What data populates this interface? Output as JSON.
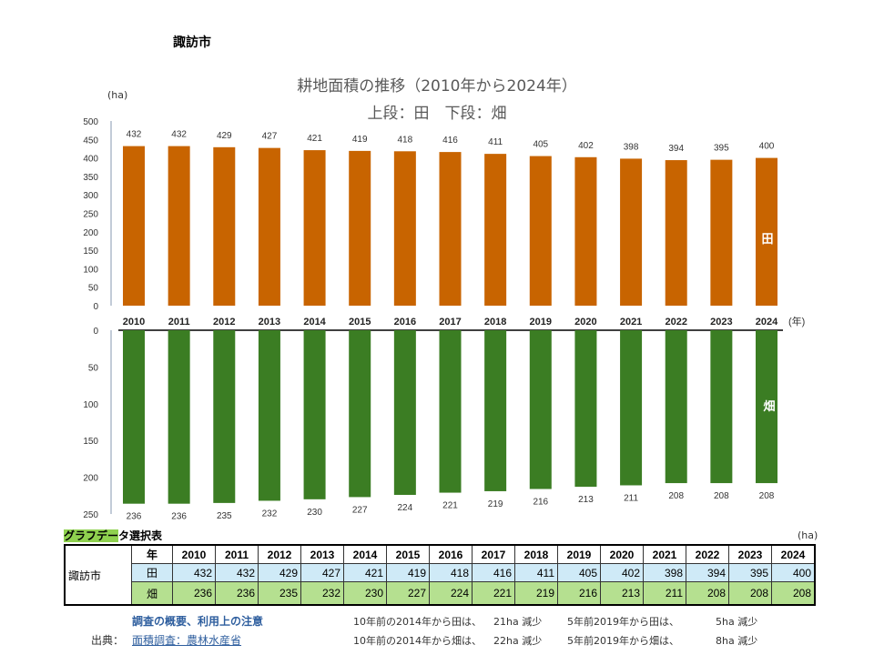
{
  "city_title": "諏訪市",
  "chart_data": {
    "type": "bar",
    "title": "耕地面積の推移（2010年から2024年）",
    "subtitle": "上段：田　下段：畑",
    "ylabel": "(ha)",
    "xlabel": "(年)",
    "categories": [
      "2010",
      "2011",
      "2012",
      "2013",
      "2014",
      "2015",
      "2016",
      "2017",
      "2018",
      "2019",
      "2020",
      "2021",
      "2022",
      "2023",
      "2024"
    ],
    "series": [
      {
        "name": "田",
        "values": [
          432,
          432,
          429,
          427,
          421,
          419,
          418,
          416,
          411,
          405,
          402,
          398,
          394,
          395,
          400
        ],
        "color": "#c86400",
        "ylim": [
          0,
          500
        ],
        "yticks": [
          0,
          50,
          100,
          150,
          200,
          250,
          300,
          350,
          400,
          450,
          500
        ]
      },
      {
        "name": "畑",
        "values": [
          236,
          236,
          235,
          232,
          230,
          227,
          224,
          221,
          219,
          216,
          213,
          211,
          208,
          208,
          208
        ],
        "color": "#3b7d23",
        "ylim": [
          0,
          250
        ],
        "yticks": [
          0,
          50,
          100,
          150,
          200,
          250
        ],
        "inverted": true
      }
    ],
    "grid": false
  },
  "table": {
    "title_highlight": "グラフデー",
    "title_rest": "タ選択表",
    "unit": "(ha)",
    "city": "諏訪市",
    "header_label": "年",
    "row_labels": [
      "田",
      "畑"
    ]
  },
  "notes": {
    "link_overview": "調査の概要、利用上の注意",
    "source_label": "出典：",
    "source_link": "面積調査：農林水産省",
    "line1_a": "10年前の2014年から田は、",
    "line1_b": "21ha 減少",
    "line1_c": "5年前2019年から田は、",
    "line1_d": "5ha 減少",
    "line2_a": "10年前の2014年から畑は、",
    "line2_b": "22ha 減少",
    "line2_c": "5年前2019年から畑は、",
    "line2_d": "8ha 減少"
  }
}
